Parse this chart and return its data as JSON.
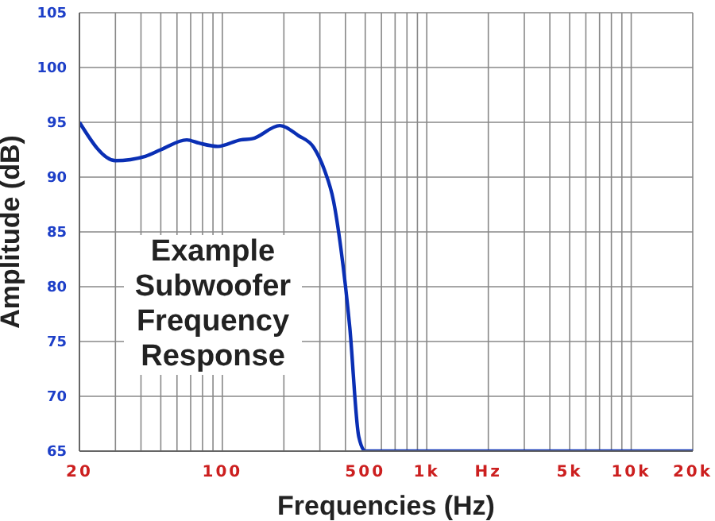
{
  "chart_data": {
    "type": "line",
    "xlabel": "Frequencies (Hz)",
    "ylabel": "Amplitude (dB)",
    "annotations": [
      "Example Subwoofer Frequency Response"
    ],
    "log": "x",
    "grid": true,
    "xlim": [
      20,
      20000
    ],
    "ylim": [
      65,
      105
    ],
    "xticks": [
      20,
      {
        "value": 30,
        "label": null
      },
      {
        "value": 40,
        "label": null
      },
      {
        "value": 50,
        "label": null
      },
      {
        "value": 60,
        "label": null
      },
      {
        "value": 70,
        "label": null
      },
      {
        "value": 80,
        "label": null
      },
      {
        "value": 90,
        "label": null
      },
      100,
      {
        "value": 200,
        "label": null
      },
      {
        "value": 300,
        "label": null
      },
      {
        "value": 400,
        "label": null
      },
      500,
      {
        "value": 600,
        "label": null
      },
      {
        "value": 700,
        "label": null
      },
      {
        "value": 800,
        "label": null
      },
      {
        "value": 900,
        "label": null
      },
      {
        "value": 1000,
        "label": "1k"
      },
      {
        "value": 2000,
        "label": "Hz"
      },
      {
        "value": 3000,
        "label": null
      },
      {
        "value": 4000,
        "label": null
      },
      {
        "value": 5000,
        "label": "5k"
      },
      {
        "value": 6000,
        "label": null
      },
      {
        "value": 7000,
        "label": null
      },
      {
        "value": 8000,
        "label": null
      },
      {
        "value": 9000,
        "label": null
      },
      {
        "value": 10000,
        "label": "10k"
      },
      {
        "value": 20000,
        "label": "20k"
      }
    ],
    "yticks": [
      65,
      70,
      75,
      80,
      85,
      90,
      95,
      100,
      105
    ],
    "marker": "none",
    "line_style": "solid",
    "x": [
      20,
      30,
      42,
      50,
      67,
      77,
      95,
      123,
      140,
      191,
      235,
      280,
      315,
      350,
      380,
      420,
      465,
      500,
      20000
    ],
    "series": [
      {
        "color": "#0a2fb4",
        "values": [
          95.0,
          91.5,
          91.9,
          92.5,
          93.4,
          93.1,
          92.8,
          93.4,
          93.5,
          94.7,
          93.8,
          92.7,
          90.7,
          87.8,
          83.5,
          76.3,
          66.3,
          65,
          65
        ]
      }
    ]
  }
}
